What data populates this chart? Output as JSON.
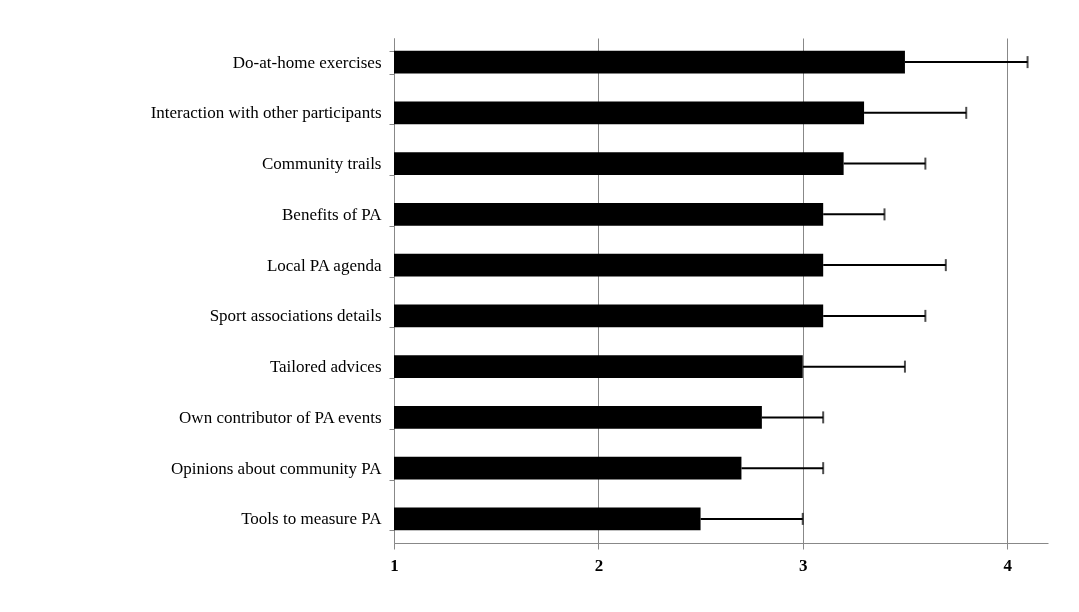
{
  "chart_data": {
    "type": "bar",
    "orientation": "horizontal",
    "categories": [
      "Do-at-home exercises",
      "Interaction with other participants",
      "Community trails",
      "Benefits of PA",
      "Local PA agenda",
      "Sport associations details",
      "Tailored advices",
      "Own contributor of PA events",
      "Opinions about community PA",
      "Tools to measure PA"
    ],
    "values": [
      3.5,
      3.3,
      3.2,
      3.1,
      3.1,
      3.1,
      3.0,
      2.8,
      2.7,
      2.5
    ],
    "errors": [
      [
        3.5,
        4.1
      ],
      [
        3.3,
        3.8
      ],
      [
        3.2,
        3.6
      ],
      [
        3.1,
        3.4
      ],
      [
        3.1,
        3.7
      ],
      [
        3.1,
        3.6
      ],
      [
        3.0,
        3.5
      ],
      [
        2.8,
        3.1
      ],
      [
        2.7,
        3.1
      ],
      [
        2.5,
        3.0
      ]
    ],
    "color": "#000000",
    "xlim": [
      1,
      4.2
    ],
    "xticks": [
      1,
      2,
      3,
      4
    ],
    "grid": "x"
  }
}
